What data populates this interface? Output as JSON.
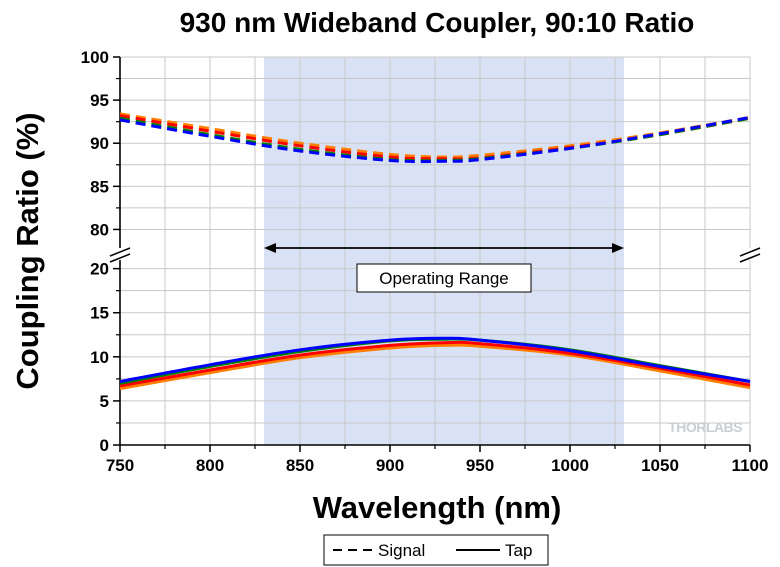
{
  "chart_data": {
    "type": "line",
    "title": "930 nm Wideband Coupler, 90:10 Ratio",
    "xlabel": "Wavelength (nm)",
    "ylabel": "Coupling Ratio (%)",
    "xlim": [
      750,
      1100
    ],
    "x_ticks": [
      750,
      800,
      850,
      900,
      950,
      1000,
      1050,
      1100
    ],
    "y_axis_break": true,
    "ylim_lower": [
      0,
      22
    ],
    "ylim_upper": [
      77.5,
      100
    ],
    "y_ticks_lower": [
      0,
      5,
      10,
      15,
      20
    ],
    "y_ticks_upper": [
      80,
      85,
      90,
      95,
      100
    ],
    "grid": true,
    "x": [
      750,
      800,
      850,
      900,
      930,
      950,
      1000,
      1050,
      1100
    ],
    "series": [
      {
        "name": "Signal",
        "style": "dashed",
        "color": "#ff7f00",
        "values": [
          93.4,
          91.7,
          90.0,
          88.7,
          88.4,
          88.6,
          89.7,
          91.2,
          93.0
        ]
      },
      {
        "name": "Signal",
        "style": "dashed",
        "color": "#ff0000",
        "values": [
          93.2,
          91.4,
          89.7,
          88.4,
          88.2,
          88.3,
          89.5,
          91.0,
          92.9
        ]
      },
      {
        "name": "Signal",
        "style": "dashed",
        "color": "#008000",
        "values": [
          92.9,
          91.0,
          89.3,
          88.1,
          88.0,
          88.2,
          89.4,
          91.0,
          92.9
        ]
      },
      {
        "name": "Signal",
        "style": "dashed",
        "color": "#0000ff",
        "values": [
          92.7,
          90.8,
          89.1,
          88.0,
          87.9,
          88.1,
          89.4,
          91.1,
          93.0
        ]
      },
      {
        "name": "Tap",
        "style": "solid",
        "color": "#ff7f00",
        "values": [
          6.4,
          8.2,
          9.9,
          11.0,
          11.3,
          11.2,
          10.2,
          8.4,
          6.5
        ]
      },
      {
        "name": "Tap",
        "style": "solid",
        "color": "#ff0000",
        "values": [
          6.7,
          8.5,
          10.2,
          11.3,
          11.6,
          11.5,
          10.4,
          8.7,
          6.8
        ]
      },
      {
        "name": "Tap",
        "style": "solid",
        "color": "#008000",
        "values": [
          7.0,
          8.9,
          10.6,
          11.8,
          12.0,
          11.9,
          10.8,
          9.0,
          7.2
        ]
      },
      {
        "name": "Tap",
        "style": "solid",
        "color": "#0000ff",
        "values": [
          7.2,
          9.1,
          10.8,
          11.9,
          12.1,
          11.9,
          10.7,
          8.9,
          7.2
        ]
      }
    ],
    "shaded_region": {
      "x_start": 830,
      "x_end": 1030,
      "color": "#d9e2f5"
    },
    "annotation": {
      "text": "Operating Range",
      "x_start": 830,
      "x_end": 1030
    },
    "legend": {
      "placement": "bottom-center",
      "entries": [
        {
          "label": "Signal",
          "style": "dashed"
        },
        {
          "label": "Tap",
          "style": "solid"
        }
      ]
    },
    "watermark": "THORLABS"
  }
}
